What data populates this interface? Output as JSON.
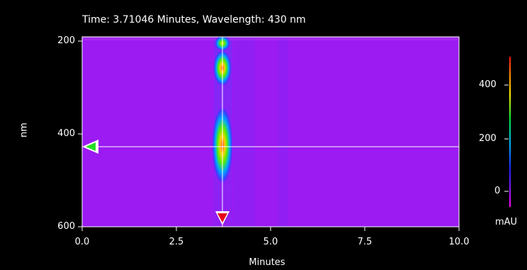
{
  "title": "Time: 3.71046 Minutes, Wavelength: 430 nm",
  "chart_data": {
    "type": "heatmap",
    "xlabel": "Minutes",
    "ylabel": "nm",
    "xlim": [
      0.0,
      10.0
    ],
    "ylim": [
      200,
      600
    ],
    "x_ticks": [
      "0.0",
      "2.5",
      "5.0",
      "7.5",
      "10.0"
    ],
    "y_ticks": [
      "200",
      "400",
      "600"
    ],
    "cursor": {
      "time": 3.71046,
      "wavelength": 430
    },
    "peaks": [
      {
        "time": 3.71,
        "wavelength": 200,
        "intensity": "medium"
      },
      {
        "time": 3.71,
        "wavelength": 255,
        "intensity": "high"
      },
      {
        "time": 3.71,
        "wavelength": 430,
        "intensity": "high"
      }
    ],
    "colorbar": {
      "label": "mAU",
      "ticks": [
        "400",
        "200",
        "0"
      ],
      "range": [
        -20,
        520
      ]
    }
  },
  "colors": {
    "background": "#000000",
    "heatmap_base": "#9b1bf2",
    "cursor_line": "#ffffff",
    "time_marker": "#e8001c",
    "wavelength_marker": "#22e022"
  }
}
